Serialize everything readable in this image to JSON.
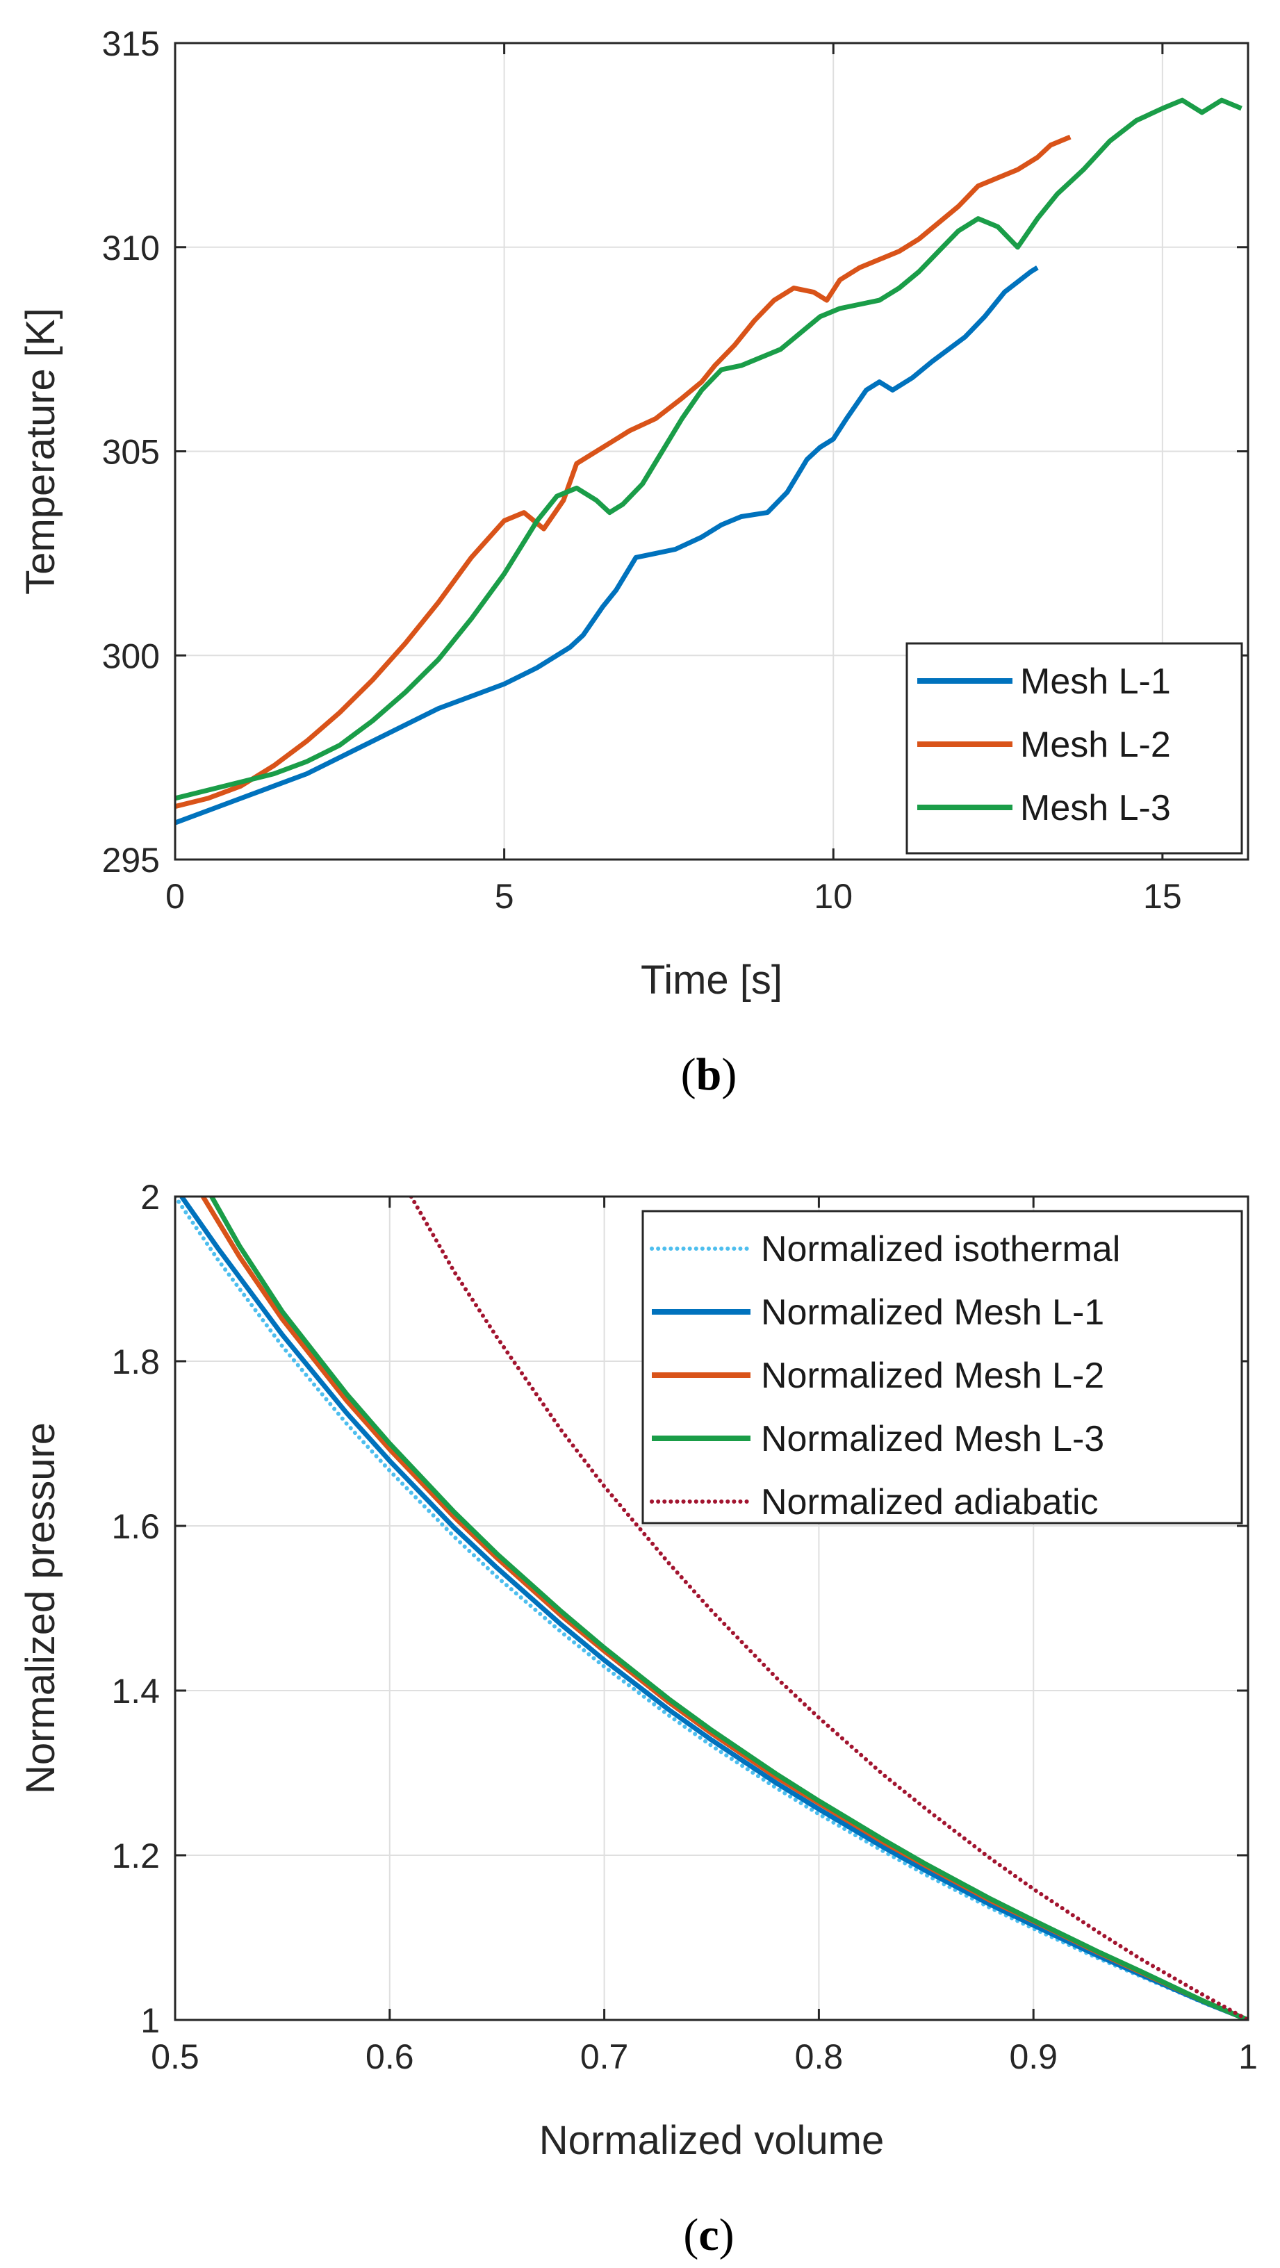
{
  "chart_data": [
    {
      "type": "line",
      "panel_label": "b",
      "xlabel": "Time [s]",
      "ylabel": "Temperature [K]",
      "xlim": [
        0,
        16.3
      ],
      "ylim": [
        295,
        315
      ],
      "xticks": [
        0,
        5,
        10,
        15
      ],
      "yticks": [
        295,
        300,
        305,
        310,
        315
      ],
      "grid": true,
      "legend_position": "bottom-right",
      "series": [
        {
          "name": "Mesh L-1",
          "color": "#0072bd",
          "style": "solid",
          "x": [
            0,
            0.5,
            1,
            1.5,
            2,
            2.5,
            3,
            3.5,
            4,
            4.5,
            5,
            5.5,
            6,
            6.2,
            6.5,
            6.7,
            7,
            7.3,
            7.6,
            8,
            8.3,
            8.6,
            9,
            9.3,
            9.6,
            9.8,
            10,
            10.2,
            10.5,
            10.7,
            10.9,
            11.2,
            11.5,
            12,
            12.3,
            12.6,
            13,
            13.1
          ],
          "y": [
            295.9,
            296.2,
            296.5,
            296.8,
            297.1,
            297.5,
            297.9,
            298.3,
            298.7,
            299.0,
            299.3,
            299.7,
            300.2,
            300.5,
            301.2,
            301.6,
            302.4,
            302.5,
            302.6,
            302.9,
            303.2,
            303.4,
            303.5,
            304.0,
            304.8,
            305.1,
            305.3,
            305.8,
            306.5,
            306.7,
            306.5,
            306.8,
            307.2,
            307.8,
            308.3,
            308.9,
            309.4,
            309.5
          ]
        },
        {
          "name": "Mesh L-2",
          "color": "#d95319",
          "style": "solid",
          "x": [
            0,
            0.5,
            1,
            1.5,
            2,
            2.5,
            3,
            3.5,
            4,
            4.5,
            5,
            5.3,
            5.6,
            5.9,
            6.1,
            6.3,
            6.6,
            6.9,
            7.3,
            7.7,
            8,
            8.2,
            8.5,
            8.8,
            9.1,
            9.4,
            9.7,
            9.9,
            10.1,
            10.4,
            10.7,
            11,
            11.3,
            11.6,
            11.9,
            12.2,
            12.5,
            12.8,
            13.1,
            13.3,
            13.6
          ],
          "y": [
            296.3,
            296.5,
            296.8,
            297.3,
            297.9,
            298.6,
            299.4,
            300.3,
            301.3,
            302.4,
            303.3,
            303.5,
            303.1,
            303.8,
            304.7,
            304.9,
            305.2,
            305.5,
            305.8,
            306.3,
            306.7,
            307.1,
            307.6,
            308.2,
            308.7,
            309.0,
            308.9,
            308.7,
            309.2,
            309.5,
            309.7,
            309.9,
            310.2,
            310.6,
            311.0,
            311.5,
            311.7,
            311.9,
            312.2,
            312.5,
            312.7
          ]
        },
        {
          "name": "Mesh L-3",
          "color": "#1a9d48",
          "style": "solid",
          "x": [
            0,
            0.5,
            1,
            1.5,
            2,
            2.5,
            3,
            3.5,
            4,
            4.5,
            5,
            5.5,
            5.8,
            6.1,
            6.4,
            6.6,
            6.8,
            7.1,
            7.4,
            7.7,
            8,
            8.3,
            8.6,
            8.9,
            9.2,
            9.5,
            9.8,
            10.1,
            10.4,
            10.7,
            11,
            11.3,
            11.6,
            11.9,
            12.2,
            12.5,
            12.8,
            13.1,
            13.4,
            13.8,
            14.2,
            14.6,
            15.0,
            15.3,
            15.6,
            15.9,
            16.2
          ],
          "y": [
            296.5,
            296.7,
            296.9,
            297.1,
            297.4,
            297.8,
            298.4,
            299.1,
            299.9,
            300.9,
            302.0,
            303.3,
            303.9,
            304.1,
            303.8,
            303.5,
            303.7,
            304.2,
            305.0,
            305.8,
            306.5,
            307.0,
            307.1,
            307.3,
            307.5,
            307.9,
            308.3,
            308.5,
            308.6,
            308.7,
            309.0,
            309.4,
            309.9,
            310.4,
            310.7,
            310.5,
            310.0,
            310.7,
            311.3,
            311.9,
            312.6,
            313.1,
            313.4,
            313.6,
            313.3,
            313.6,
            313.4
          ]
        }
      ]
    },
    {
      "type": "line",
      "panel_label": "c",
      "xlabel": "Normalized volume",
      "ylabel": "Normalized pressure",
      "xlim": [
        0.5,
        1
      ],
      "ylim": [
        1,
        2
      ],
      "xticks": [
        0.5,
        0.6,
        0.7,
        0.8,
        0.9,
        1
      ],
      "yticks": [
        1,
        1.2,
        1.4,
        1.6,
        1.8,
        2
      ],
      "grid": true,
      "legend_position": "top-right",
      "series": [
        {
          "name": "Normalized isothermal",
          "color": "#4dbeee",
          "style": "dotted",
          "x": [
            0.5,
            0.52,
            0.55,
            0.58,
            0.6,
            0.63,
            0.65,
            0.68,
            0.7,
            0.73,
            0.75,
            0.78,
            0.8,
            0.83,
            0.85,
            0.88,
            0.9,
            0.93,
            0.95,
            0.98,
            1.0
          ],
          "y": [
            2.0,
            1.923,
            1.818,
            1.724,
            1.667,
            1.587,
            1.538,
            1.471,
            1.429,
            1.37,
            1.333,
            1.282,
            1.25,
            1.205,
            1.176,
            1.136,
            1.111,
            1.075,
            1.053,
            1.02,
            1.0
          ]
        },
        {
          "name": "Normalized Mesh L-1",
          "color": "#0072bd",
          "style": "solid",
          "x": [
            0.503,
            0.52,
            0.55,
            0.58,
            0.6,
            0.63,
            0.65,
            0.68,
            0.7,
            0.73,
            0.75,
            0.78,
            0.8,
            0.83,
            0.85,
            0.88,
            0.9,
            0.93,
            0.95,
            0.98,
            1.0
          ],
          "y": [
            2.0,
            1.937,
            1.832,
            1.737,
            1.679,
            1.598,
            1.549,
            1.48,
            1.437,
            1.377,
            1.34,
            1.288,
            1.256,
            1.21,
            1.181,
            1.14,
            1.115,
            1.078,
            1.055,
            1.021,
            1.0
          ]
        },
        {
          "name": "Normalized Mesh L-2",
          "color": "#d95319",
          "style": "solid",
          "x": [
            0.513,
            0.53,
            0.55,
            0.58,
            0.6,
            0.63,
            0.65,
            0.68,
            0.7,
            0.73,
            0.75,
            0.78,
            0.8,
            0.83,
            0.85,
            0.88,
            0.9,
            0.93,
            0.95,
            0.98,
            1.0
          ],
          "y": [
            2.0,
            1.927,
            1.851,
            1.752,
            1.693,
            1.611,
            1.561,
            1.491,
            1.448,
            1.386,
            1.348,
            1.295,
            1.263,
            1.216,
            1.187,
            1.145,
            1.12,
            1.082,
            1.058,
            1.022,
            1.0
          ]
        },
        {
          "name": "Normalized Mesh L-3",
          "color": "#1a9d48",
          "style": "solid",
          "x": [
            0.517,
            0.53,
            0.55,
            0.58,
            0.6,
            0.63,
            0.65,
            0.68,
            0.7,
            0.73,
            0.75,
            0.78,
            0.8,
            0.83,
            0.85,
            0.88,
            0.9,
            0.93,
            0.95,
            0.98,
            1.0
          ],
          "y": [
            2.0,
            1.94,
            1.86,
            1.76,
            1.7,
            1.617,
            1.566,
            1.496,
            1.452,
            1.39,
            1.352,
            1.299,
            1.266,
            1.219,
            1.189,
            1.147,
            1.121,
            1.083,
            1.059,
            1.022,
            1.0
          ]
        },
        {
          "name": "Normalized adiabatic",
          "color": "#a2142f",
          "style": "dotted",
          "x": [
            0.61,
            0.63,
            0.65,
            0.68,
            0.7,
            0.73,
            0.75,
            0.78,
            0.8,
            0.83,
            0.85,
            0.88,
            0.9,
            0.93,
            0.95,
            0.98,
            1.0
          ],
          "y": [
            2.0,
            1.909,
            1.829,
            1.716,
            1.648,
            1.555,
            1.497,
            1.416,
            1.367,
            1.298,
            1.256,
            1.196,
            1.159,
            1.107,
            1.074,
            1.029,
            1.0
          ]
        }
      ]
    }
  ]
}
